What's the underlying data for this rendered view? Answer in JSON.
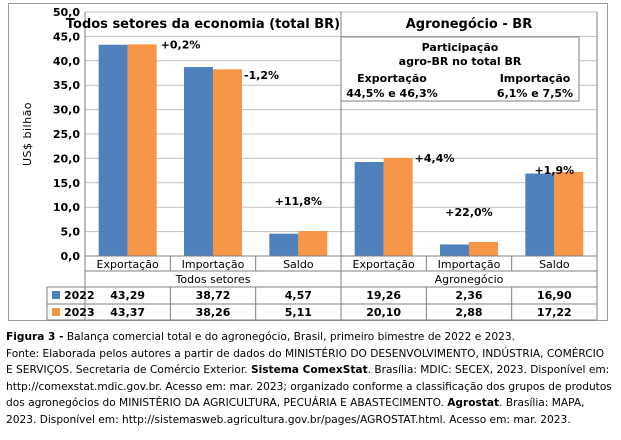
{
  "chart_data": {
    "type": "bar",
    "ylabel": "US$ bilhão",
    "ylim": [
      0,
      50
    ],
    "yticks": [
      "0,0",
      "5,0",
      "10,0",
      "15,0",
      "20,0",
      "25,0",
      "30,0",
      "35,0",
      "40,0",
      "45,0",
      "50,0"
    ],
    "grid": true,
    "groups": [
      {
        "label": "Todos setores",
        "categories": [
          "Exportação",
          "Importação",
          "Saldo"
        ]
      },
      {
        "label": "Agronegócio",
        "categories": [
          "Exportação",
          "Importação",
          "Saldo"
        ]
      }
    ],
    "categories": [
      "Exportação",
      "Importação",
      "Saldo",
      "Exportação",
      "Importação",
      "Saldo"
    ],
    "series": [
      {
        "name": "2022",
        "values": [
          43.29,
          38.72,
          4.57,
          19.26,
          2.36,
          16.9
        ],
        "labels": [
          "43,29",
          "38,72",
          "4,57",
          "19,26",
          "2,36",
          "16,90"
        ],
        "color": "#4f81bd"
      },
      {
        "name": "2023",
        "values": [
          43.37,
          38.26,
          5.11,
          20.1,
          2.88,
          17.22
        ],
        "labels": [
          "43,37",
          "38,26",
          "5,11",
          "20,10",
          "2,88",
          "17,22"
        ],
        "color": "#f79646"
      }
    ],
    "change_labels": [
      "+0,2%",
      "-1,2%",
      "+11,8%",
      "+4,4%",
      "+22,0%",
      "+1,9%"
    ],
    "panel_titles": [
      "Todos setores da economia (total BR)",
      "Agronegócio - BR"
    ],
    "participation_box": {
      "title_line1": "Participação",
      "title_line2": "agro-BR no total BR",
      "export_label": "Exportação",
      "export_value": "44,5% e 46,3%",
      "import_label": "Importação",
      "import_value": "6,1% e 7,5%"
    }
  },
  "caption": {
    "fig_label": "Figura 3 -",
    "fig_title": " Balança comercial total e do agronegócio, Brasil, primeiro bimestre de 2022 e 2023.",
    "source_1": "Fonte: Elaborada pelos autores a partir de dados do MINISTÉRIO DO DESENVOLVIMENTO, INDÚSTRIA, COMÉRCIO E SERVIÇOS. Secretaria de Comércio Exterior. ",
    "source_bold_1": "Sistema ComexStat",
    "source_2": ". Brasília: MDIC: SECEX, 2023. Disponível em: http://comexstat.mdic.gov.br. Acesso em: mar. 2023; organizado conforme a classificação dos grupos de produtos dos agronegócios do MINISTÉRIO DA AGRICULTURA, PECUÁRIA E ABASTECIMENTO. ",
    "source_bold_2": "Agrostat",
    "source_3": ". Brasília: MAPA, 2023. Disponível em: http://sistemasweb.agricultura.gov.br/pages/AGROSTAT.html. Acesso em: mar. 2023."
  }
}
